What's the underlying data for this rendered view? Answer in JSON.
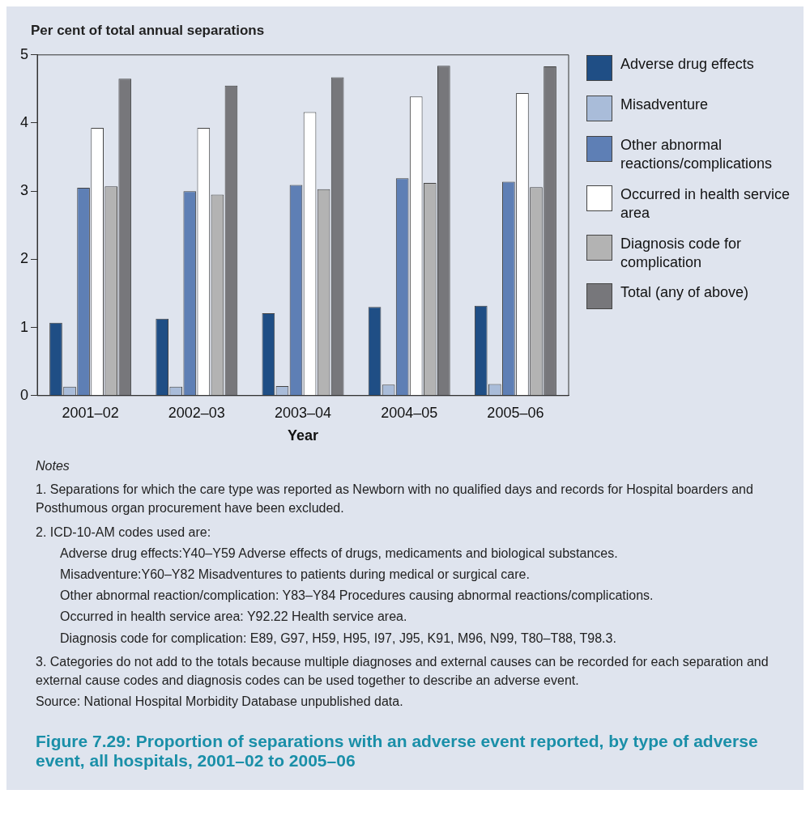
{
  "chart_data": {
    "type": "bar",
    "title": "Figure 7.29: Proportion of separations with an adverse event reported, by type of adverse event, all hospitals, 2001–02 to 2005–06",
    "ylabel": "Per cent of total annual separations",
    "xlabel": "Year",
    "categories": [
      "2001–02",
      "2002–03",
      "2003–04",
      "2004–05",
      "2005–06"
    ],
    "series": [
      {
        "name": "Adverse drug effects",
        "color": "#1f4e85",
        "values": [
          1.07,
          1.13,
          1.21,
          1.3,
          1.32
        ]
      },
      {
        "name": "Misadventure",
        "color": "#a9bcd9",
        "values": [
          0.13,
          0.13,
          0.14,
          0.16,
          0.17
        ]
      },
      {
        "name": "Other abnormal reactions/complications",
        "color": "#5e7fb5",
        "values": [
          3.05,
          3.0,
          3.09,
          3.19,
          3.14
        ]
      },
      {
        "name": "Occurred in health service area",
        "color": "#ffffff",
        "values": [
          3.93,
          3.93,
          4.16,
          4.39,
          4.44
        ]
      },
      {
        "name": "Diagnosis code for complication",
        "color": "#b3b3b3",
        "values": [
          3.07,
          2.95,
          3.03,
          3.12,
          3.06
        ]
      },
      {
        "name": "Total (any of above)",
        "color": "#77777b",
        "values": [
          4.65,
          4.55,
          4.67,
          4.84,
          4.83
        ]
      }
    ],
    "ylim": [
      0,
      5
    ],
    "yticks": [
      0,
      1,
      2,
      3,
      4,
      5
    ],
    "grid": false,
    "legend": "right",
    "annotations": [
      "Notes",
      "1. Separations for which the care type was reported as Newborn with no qualified days and records for Hospital boarders and Posthumous organ procurement have been excluded.",
      "2. ICD-10-AM codes used are:",
      "Adverse drug effects:Y40–Y59 Adverse effects of drugs, medicaments and biological substances.",
      "Misadventure:Y60–Y82 Misadventures to patients during medical or surgical care.",
      "Other abnormal reaction/complication: Y83–Y84 Procedures causing abnormal reactions/complications.",
      "Occurred in health service area: Y92.22 Health service area.",
      "Diagnosis code for complication: E89, G97, H59, H95, I97, J95, K91, M96, N99, T80–T88, T98.3.",
      "3. Categories do not add to the totals because multiple diagnoses and external causes can be recorded for each separation and external cause codes and diagnosis codes can be used together to describe an adverse event.",
      "Source: National Hospital Morbidity Database unpublished data."
    ]
  }
}
